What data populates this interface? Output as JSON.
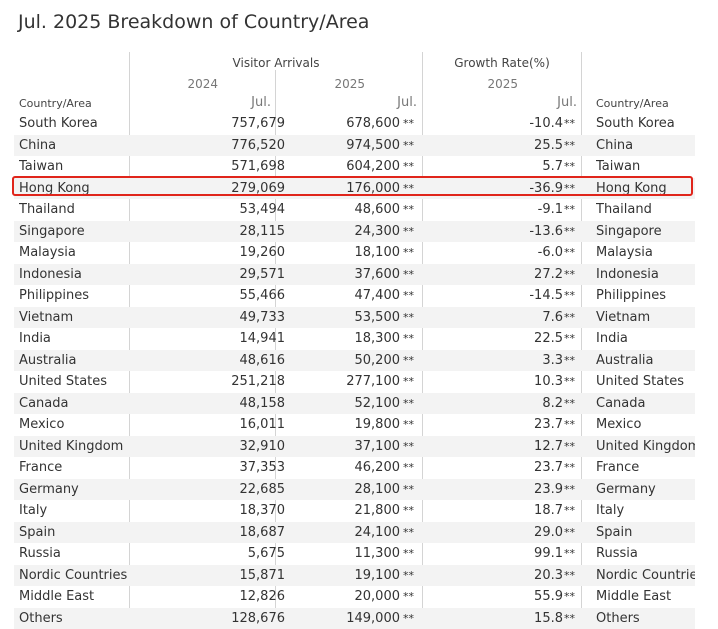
{
  "title": "Jul. 2025 Breakdown of Country/Area",
  "headers": {
    "visitor_arrivals": "Visitor Arrivals",
    "growth_rate": "Growth Rate(%)",
    "year_2024": "2024",
    "year_2025": "2025",
    "growth_year": "2025",
    "month_2024": "Jul.",
    "month_2025": "Jul.",
    "month_growth": "Jul.",
    "country_left": "Country/Area",
    "country_right": "Country/Area"
  },
  "flag": "**",
  "highlight_color": "#e0251b",
  "highlighted_row": "Hong Kong",
  "rows": [
    {
      "name": "South Korea",
      "v2024": "757,679",
      "v2025": "678,600",
      "growth": "-10.4",
      "name_right": "South Korea"
    },
    {
      "name": "China",
      "v2024": "776,520",
      "v2025": "974,500",
      "growth": "25.5",
      "name_right": "China"
    },
    {
      "name": "Taiwan",
      "v2024": "571,698",
      "v2025": "604,200",
      "growth": "5.7",
      "name_right": "Taiwan"
    },
    {
      "name": "Hong Kong",
      "v2024": "279,069",
      "v2025": "176,000",
      "growth": "-36.9",
      "name_right": "Hong Kong"
    },
    {
      "name": "Thailand",
      "v2024": "53,494",
      "v2025": "48,600",
      "growth": "-9.1",
      "name_right": "Thailand"
    },
    {
      "name": "Singapore",
      "v2024": "28,115",
      "v2025": "24,300",
      "growth": "-13.6",
      "name_right": "Singapore"
    },
    {
      "name": "Malaysia",
      "v2024": "19,260",
      "v2025": "18,100",
      "growth": "-6.0",
      "name_right": "Malaysia"
    },
    {
      "name": "Indonesia",
      "v2024": "29,571",
      "v2025": "37,600",
      "growth": "27.2",
      "name_right": "Indonesia"
    },
    {
      "name": "Philippines",
      "v2024": "55,466",
      "v2025": "47,400",
      "growth": "-14.5",
      "name_right": "Philippines"
    },
    {
      "name": "Vietnam",
      "v2024": "49,733",
      "v2025": "53,500",
      "growth": "7.6",
      "name_right": "Vietnam"
    },
    {
      "name": "India",
      "v2024": "14,941",
      "v2025": "18,300",
      "growth": "22.5",
      "name_right": "India"
    },
    {
      "name": "Australia",
      "v2024": "48,616",
      "v2025": "50,200",
      "growth": "3.3",
      "name_right": "Australia"
    },
    {
      "name": "United States",
      "v2024": "251,218",
      "v2025": "277,100",
      "growth": "10.3",
      "name_right": "United States"
    },
    {
      "name": "Canada",
      "v2024": "48,158",
      "v2025": "52,100",
      "growth": "8.2",
      "name_right": "Canada"
    },
    {
      "name": "Mexico",
      "v2024": "16,011",
      "v2025": "19,800",
      "growth": "23.7",
      "name_right": "Mexico"
    },
    {
      "name": "United Kingdom",
      "v2024": "32,910",
      "v2025": "37,100",
      "growth": "12.7",
      "name_right": "United Kingdom"
    },
    {
      "name": "France",
      "v2024": "37,353",
      "v2025": "46,200",
      "growth": "23.7",
      "name_right": "France"
    },
    {
      "name": "Germany",
      "v2024": "22,685",
      "v2025": "28,100",
      "growth": "23.9",
      "name_right": "Germany"
    },
    {
      "name": "Italy",
      "v2024": "18,370",
      "v2025": "21,800",
      "growth": "18.7",
      "name_right": "Italy"
    },
    {
      "name": "Spain",
      "v2024": "18,687",
      "v2025": "24,100",
      "growth": "29.0",
      "name_right": "Spain"
    },
    {
      "name": "Russia",
      "v2024": "5,675",
      "v2025": "11,300",
      "growth": "99.1",
      "name_right": "Russia"
    },
    {
      "name": "Nordic Countries",
      "v2024": "15,871",
      "v2025": "19,100",
      "growth": "20.3",
      "name_right": "Nordic Countrie"
    },
    {
      "name": "Middle East",
      "v2024": "12,826",
      "v2025": "20,000",
      "growth": "55.9",
      "name_right": "Middle East"
    },
    {
      "name": "Others",
      "v2024": "128,676",
      "v2025": "149,000",
      "growth": "15.8",
      "name_right": "Others"
    }
  ]
}
